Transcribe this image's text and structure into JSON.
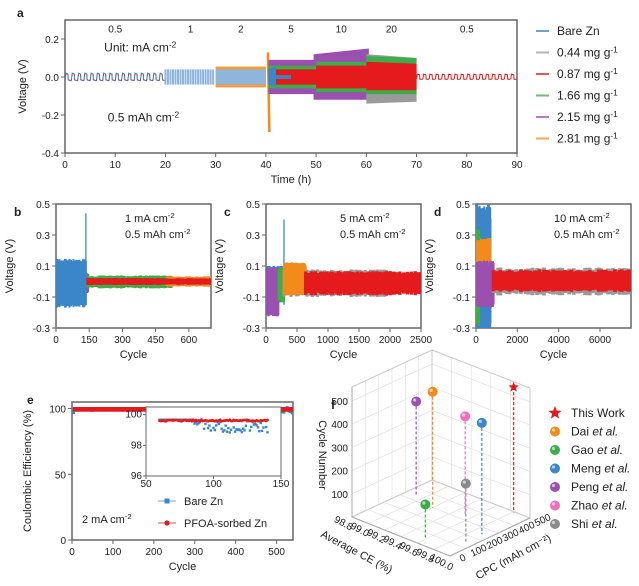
{
  "colors": {
    "bare_zn": "#3a86c8",
    "c044": "#9a9a9a",
    "c087": "#e41a1c",
    "c166": "#3cad48",
    "c215": "#9b4fb0",
    "c281": "#f28a1c",
    "this_work": "#e41a1c",
    "dai": "#f28a1c",
    "gao": "#3cad48",
    "meng": "#3a86c8",
    "peng": "#9b4fb0",
    "zhao": "#ef6fbd",
    "shi": "#8a8a8a"
  },
  "chart_data": [
    {
      "id": "a",
      "type": "line",
      "panel_label": "a",
      "xlabel": "Time (h)",
      "ylabel": "Voltage (V)",
      "xlim": [
        0,
        90
      ],
      "ylim": [
        -0.4,
        0.3
      ],
      "xticks": [
        0,
        10,
        20,
        30,
        40,
        50,
        60,
        70,
        80,
        90
      ],
      "yticks": [
        -0.4,
        -0.2,
        0.0,
        0.2
      ],
      "ytick_labels": [
        "-0.4",
        "-0.2",
        "0.0",
        "0.2"
      ],
      "annotations": [
        "Unit: mA cm⁻²",
        "0.5 mAh cm⁻²"
      ],
      "rate_labels": [
        {
          "label": "0.5",
          "x": 10
        },
        {
          "label": "1",
          "x": 25
        },
        {
          "label": "2",
          "x": 35
        },
        {
          "label": "5",
          "x": 45
        },
        {
          "label": "10",
          "x": 55
        },
        {
          "label": "20",
          "x": 65
        },
        {
          "label": "0.5",
          "x": 80
        }
      ],
      "legend": [
        "Bare Zn",
        "0.44 mg g⁻¹",
        "0.87 mg g⁻¹",
        "1.66 mg g⁻¹",
        "2.15 mg g⁻¹",
        "2.81 mg g⁻¹"
      ],
      "legend_position": "right",
      "segments": [
        {
          "t": [
            0,
            20
          ],
          "current": 0.5,
          "envelope": 0.03
        },
        {
          "t": [
            20,
            30
          ],
          "current": 1,
          "envelope": 0.04
        },
        {
          "t": [
            30,
            40
          ],
          "current": 2,
          "envelope": 0.055
        },
        {
          "t": [
            40,
            50
          ],
          "current": 5,
          "envelope": 0.08
        },
        {
          "t": [
            50,
            60
          ],
          "current": 10,
          "envelope": 0.12
        },
        {
          "t": [
            60,
            70
          ],
          "current": 20,
          "envelope": 0.12
        },
        {
          "t": [
            70,
            90
          ],
          "current": 0.5,
          "envelope": 0.015
        }
      ],
      "series": [
        {
          "name": "Bare Zn",
          "t_end": 45,
          "max_abs_v": 0.06
        },
        {
          "name": "0.44 mg g⁻¹",
          "t_end": 70,
          "max_abs_v": 0.1
        },
        {
          "name": "0.87 mg g⁻¹",
          "t_end": 90,
          "max_abs_v": 0.06
        },
        {
          "name": "1.66 mg g⁻¹",
          "t_end": 70,
          "max_abs_v": 0.1
        },
        {
          "name": "2.15 mg g⁻¹",
          "t_end": 61,
          "max_abs_v": 0.22
        },
        {
          "name": "2.81 mg g⁻¹",
          "t_end": 41,
          "max_abs_v": 0.29
        }
      ]
    },
    {
      "id": "b",
      "type": "line",
      "panel_label": "b",
      "xlabel": "Cycle",
      "ylabel": "Voltage (V)",
      "xlim": [
        0,
        700
      ],
      "ylim": [
        -0.3,
        0.5
      ],
      "xticks": [
        0,
        150,
        300,
        450,
        600
      ],
      "yticks": [
        -0.3,
        -0.1,
        0.1,
        0.3,
        0.5
      ],
      "annotations": [
        "1 mA cm⁻²",
        "0.5 mAh cm⁻²"
      ],
      "series": [
        {
          "name": "0.44 mg g⁻¹",
          "x_end": 20,
          "amp": 0.03,
          "lo": -0.03
        },
        {
          "name": "2.15 mg g⁻¹",
          "x_end": 145,
          "amp": 0.05,
          "lo": -0.07
        },
        {
          "name": "Bare Zn",
          "x_end": 135,
          "amp": 0.13,
          "lo": -0.15,
          "spike": 0.44
        },
        {
          "name": "1.66 mg g⁻¹",
          "x_end": 520,
          "amp": 0.035,
          "lo": -0.04
        },
        {
          "name": "2.81 mg g⁻¹",
          "x_end": 700,
          "amp": 0.03,
          "lo": -0.03
        },
        {
          "name": "0.87 mg g⁻¹",
          "x_end": 700,
          "amp": 0.02,
          "lo": -0.02
        }
      ]
    },
    {
      "id": "c",
      "type": "line",
      "panel_label": "c",
      "xlabel": "Cycle",
      "ylabel": "Voltage (V)",
      "xlim": [
        0,
        2500
      ],
      "ylim": [
        -0.3,
        0.5
      ],
      "xticks": [
        0,
        500,
        1000,
        1500,
        2000,
        2500
      ],
      "yticks": [
        -0.3,
        -0.1,
        0.1,
        0.3,
        0.5
      ],
      "annotations": [
        "5 mA cm⁻²",
        "0.5 mAh cm⁻²"
      ],
      "series": [
        {
          "name": "Bare Zn",
          "x_end": 290,
          "amp": 0.09,
          "lo": -0.1,
          "spike": 0.4
        },
        {
          "name": "2.15 mg g⁻¹",
          "x_end": 200,
          "amp": 0.08,
          "lo": -0.2
        },
        {
          "name": "1.66 mg g⁻¹",
          "x_end": 290,
          "amp": 0.08,
          "lo": -0.12
        },
        {
          "name": "0.44 mg g⁻¹",
          "x_end": 2000,
          "amp": 0.07,
          "lo": -0.09
        },
        {
          "name": "2.81 mg g⁻¹",
          "x_end": 640,
          "amp": 0.11,
          "lo": -0.08
        },
        {
          "name": "0.87 mg g⁻¹",
          "x_end": 2500,
          "amp": 0.06,
          "lo": -0.08
        }
      ]
    },
    {
      "id": "d",
      "type": "line",
      "panel_label": "d",
      "xlabel": "Cycle",
      "ylabel": "Voltage (V)",
      "xlim": [
        0,
        7500
      ],
      "ylim": [
        -0.3,
        0.5
      ],
      "xticks": [
        0,
        2000,
        4000,
        6000
      ],
      "yticks": [
        -0.3,
        -0.1,
        0.1,
        0.3,
        0.5
      ],
      "annotations": [
        "10 mA cm⁻²",
        "0.5 mAh cm⁻²"
      ],
      "series": [
        {
          "name": "Bare Zn",
          "x_end": 700,
          "amp": 0.45,
          "lo": -0.3
        },
        {
          "name": "1.66 mg g⁻¹",
          "x_end": 150,
          "amp": 0.3,
          "lo": -0.25
        },
        {
          "name": "2.81 mg g⁻¹",
          "x_end": 700,
          "amp": 0.25,
          "lo": -0.1
        },
        {
          "name": "2.15 mg g⁻¹",
          "x_end": 850,
          "amp": 0.12,
          "lo": -0.15
        },
        {
          "name": "0.44 mg g⁻¹",
          "x_end": 7500,
          "amp": 0.08,
          "lo": -0.08
        },
        {
          "name": "0.87 mg g⁻¹",
          "x_end": 7500,
          "amp": 0.07,
          "lo": -0.06
        }
      ]
    },
    {
      "id": "e",
      "type": "scatter",
      "panel_label": "e",
      "xlabel": "Cycle",
      "ylabel": "Coulombic Efficiency (%)",
      "xlim": [
        0,
        540
      ],
      "ylim": [
        0,
        105
      ],
      "xticks": [
        0,
        100,
        200,
        300,
        400,
        500
      ],
      "yticks": [
        0,
        50,
        100
      ],
      "annotations": [
        "2 mA cm⁻²"
      ],
      "legend": [
        "Bare Zn",
        "PFOA-sorbed Zn"
      ],
      "legend_position": "bottom-right",
      "series": [
        {
          "name": "Bare Zn",
          "mean": 98.8,
          "spread": 2.5
        },
        {
          "name": "PFOA-sorbed Zn",
          "mean": 99.6,
          "spread": 0.3
        }
      ],
      "inset": {
        "xlim": [
          50,
          150
        ],
        "ylim": [
          96,
          100.5
        ],
        "xticks": [
          50,
          100,
          150
        ],
        "yticks": [
          96,
          98,
          100
        ],
        "series": [
          {
            "name": "Bare Zn",
            "x": [
              60,
              140
            ],
            "mean_start": 99.7,
            "mean_end": 99.0,
            "spread": 0.6
          },
          {
            "name": "PFOA-sorbed Zn",
            "x": [
              60,
              140
            ],
            "mean_start": 99.65,
            "mean_end": 99.65,
            "spread": 0.05
          }
        ]
      }
    },
    {
      "id": "f",
      "type": "scatter",
      "panel_label": "f",
      "projection": "3d",
      "xlabel": "Average CE (%)",
      "ylabel": "CPC (mAh cm⁻²)",
      "zlabel": "Cycle Number",
      "xticks": [
        "98.8",
        "99.0",
        "99.2",
        "99.4",
        "99.6",
        "99.8",
        "100.0"
      ],
      "yticks": [
        "0",
        "100",
        "200",
        "300",
        "400",
        "500"
      ],
      "zticks": [
        "100",
        "200",
        "300",
        "400",
        "500"
      ],
      "legend": [
        "This Work",
        "Dai et al.",
        "Gao et al.",
        "Meng et al.",
        "Peng et al.",
        "Zhao et al.",
        "Shi et al."
      ],
      "legend_position": "right",
      "points": [
        {
          "name": "This Work",
          "ce": 99.8,
          "cpc": 500,
          "cycles": 540,
          "marker": "star"
        },
        {
          "name": "Dai et al.",
          "ce": 99.2,
          "cpc": 300,
          "cycles": 500,
          "marker": "sphere"
        },
        {
          "name": "Gao et al.",
          "ce": 99.6,
          "cpc": 50,
          "cycles": 150,
          "marker": "sphere"
        },
        {
          "name": "Meng et al.",
          "ce": 99.9,
          "cpc": 250,
          "cycles": 480,
          "marker": "sphere"
        },
        {
          "name": "Peng et al.",
          "ce": 98.9,
          "cpc": 350,
          "cycles": 400,
          "marker": "sphere"
        },
        {
          "name": "Zhao et al.",
          "ce": 99.5,
          "cpc": 350,
          "cycles": 420,
          "marker": "sphere"
        },
        {
          "name": "Shi et al.",
          "ce": 99.9,
          "cpc": 150,
          "cycles": 250,
          "marker": "sphere"
        }
      ]
    }
  ]
}
